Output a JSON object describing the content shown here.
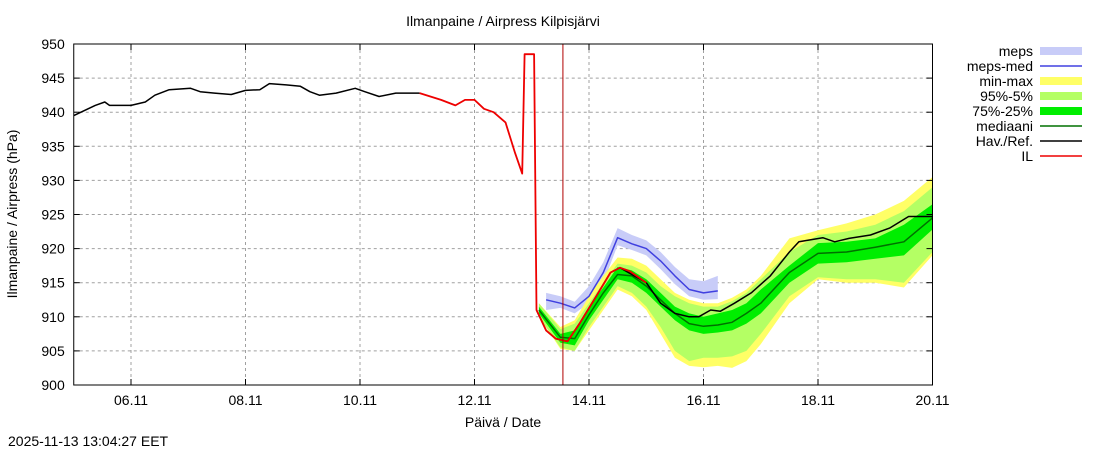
{
  "chart_data": {
    "type": "line",
    "title": "Ilmanpaine / Airpress Kilpisjärvi",
    "xlabel": "Päivä / Date",
    "ylabel": "Ilmanpaine / Airpress (hPa)",
    "xlim": [
      "2025-11-05T00:00",
      "2025-11-20T00:00"
    ],
    "ylim": [
      900,
      950
    ],
    "yticks": [
      900,
      905,
      910,
      915,
      920,
      925,
      930,
      935,
      940,
      945,
      950
    ],
    "xticks": [
      {
        "t": "2025-11-06T00:00",
        "label": "06.11"
      },
      {
        "t": "2025-11-08T00:00",
        "label": "08.11"
      },
      {
        "t": "2025-11-10T00:00",
        "label": "10.11"
      },
      {
        "t": "2025-11-12T00:00",
        "label": "12.11"
      },
      {
        "t": "2025-11-14T00:00",
        "label": "14.11"
      },
      {
        "t": "2025-11-16T00:00",
        "label": "16.11"
      },
      {
        "t": "2025-11-18T00:00",
        "label": "18.11"
      },
      {
        "t": "2025-11-20T00:00",
        "label": "20.11"
      }
    ],
    "grid": true,
    "legend_placement": "right-outside-top",
    "now_marker": "2025-11-13T13:04",
    "colors": {
      "meps": "#c8ccf8",
      "meps_med": "#4040e0",
      "minmax": "#ffff66",
      "p95_5": "#b4ff64",
      "p75_25": "#00ee00",
      "median": "#007000",
      "obs": "#000000",
      "il": "#ee0000",
      "now": "#b00000"
    },
    "legend": [
      {
        "label": "meps",
        "key": "meps",
        "kind": "band"
      },
      {
        "label": "meps-med",
        "key": "meps_med",
        "kind": "line"
      },
      {
        "label": "min-max",
        "key": "minmax",
        "kind": "band"
      },
      {
        "label": "95%-5%",
        "key": "p95_5",
        "kind": "band"
      },
      {
        "label": "75%-25%",
        "key": "p75_25",
        "kind": "band"
      },
      {
        "label": "mediaani",
        "key": "median",
        "kind": "line"
      },
      {
        "label": "Hav./Ref.",
        "key": "obs",
        "kind": "line"
      },
      {
        "label": "IL",
        "key": "il",
        "kind": "line"
      }
    ],
    "ensemble": {
      "t": [
        "2025-11-13T03:00",
        "2025-11-13T12:00",
        "2025-11-13T18:00",
        "2025-11-14T00:00",
        "2025-11-14T06:00",
        "2025-11-14T12:00",
        "2025-11-14T18:00",
        "2025-11-15T00:00",
        "2025-11-15T06:00",
        "2025-11-15T12:00",
        "2025-11-15T18:00",
        "2025-11-16T00:00",
        "2025-11-16T06:00",
        "2025-11-16T12:00",
        "2025-11-16T18:00",
        "2025-11-17T00:00",
        "2025-11-17T12:00",
        "2025-11-18T00:00",
        "2025-11-18T12:00",
        "2025-11-19T00:00",
        "2025-11-19T12:00",
        "2025-11-20T00:00"
      ],
      "median": [
        911,
        907,
        906.8,
        910.3,
        913.5,
        916.2,
        916,
        914.5,
        912.5,
        910.5,
        909,
        908.6,
        908.8,
        909.2,
        910.5,
        912,
        916.5,
        919.3,
        919.5,
        920.2,
        921,
        924.5
      ],
      "p25": [
        910.5,
        906.2,
        905.8,
        909.5,
        912.5,
        915.5,
        915,
        913.5,
        911.5,
        909.5,
        908,
        907.5,
        907.7,
        908,
        909,
        910.5,
        915,
        917.8,
        918,
        918.5,
        919,
        922.8
      ],
      "p75": [
        911.5,
        907.5,
        908,
        911.5,
        914.3,
        917.3,
        916.8,
        915.5,
        913.5,
        911.5,
        910.5,
        910,
        910.5,
        911,
        912,
        914,
        917.5,
        920.8,
        921,
        921.5,
        923.5,
        926.5
      ],
      "p5": [
        910,
        905.5,
        905,
        908.5,
        911.5,
        914.5,
        913.5,
        911.5,
        908.5,
        905,
        903.5,
        904,
        904,
        904.2,
        905,
        907.5,
        913,
        915.8,
        915.5,
        915.5,
        915,
        919.5
      ],
      "p95": [
        912,
        908.2,
        909,
        912,
        915,
        917.8,
        917.5,
        916.5,
        914.5,
        913,
        912,
        911.5,
        911.5,
        912.3,
        913.5,
        915.5,
        919.5,
        922,
        922.5,
        923.5,
        925.5,
        929
      ],
      "min": [
        910,
        905.3,
        905,
        908,
        911,
        914,
        913,
        911,
        907.5,
        904,
        902.8,
        902.6,
        902.8,
        902.5,
        903.5,
        906,
        912,
        915.5,
        915,
        915,
        914.3,
        919
      ],
      "max": [
        912,
        908.5,
        909.5,
        913,
        916,
        918.7,
        918.5,
        917.5,
        915.5,
        913.5,
        912.5,
        912,
        912,
        912.8,
        914,
        916,
        921.5,
        922.7,
        923.7,
        925,
        927,
        930.5
      ]
    },
    "meps": {
      "t": [
        "2025-11-13T06:00",
        "2025-11-13T12:00",
        "2025-11-13T18:00",
        "2025-11-14T00:00",
        "2025-11-14T06:00",
        "2025-11-14T12:00",
        "2025-11-14T18:00",
        "2025-11-15T00:00",
        "2025-11-15T06:00",
        "2025-11-15T12:00",
        "2025-11-15T18:00",
        "2025-11-16T00:00",
        "2025-11-16T06:00"
      ],
      "median": [
        912.5,
        912,
        911.3,
        913,
        916.5,
        921.6,
        920.7,
        920,
        918.2,
        916,
        914,
        913.5,
        913.8
      ],
      "low": [
        911,
        911.3,
        910.5,
        912,
        915,
        920.5,
        919.8,
        919,
        917,
        914.8,
        913,
        912.5,
        912.6
      ],
      "high": [
        913.5,
        913,
        912.2,
        914.5,
        918,
        923,
        922,
        921.2,
        919.5,
        917.3,
        915.5,
        915.2,
        916
      ]
    },
    "observed": [
      [
        [
          "2025-11-05T00:00",
          939.5
        ],
        [
          "2025-11-05T09:00",
          941
        ],
        [
          "2025-11-05T13:00",
          941.5
        ],
        [
          "2025-11-05T15:00",
          941
        ],
        [
          "2025-11-06T00:00",
          941
        ],
        [
          "2025-11-06T06:00",
          941.5
        ],
        [
          "2025-11-06T10:00",
          942.5
        ],
        [
          "2025-11-06T16:00",
          943.3
        ],
        [
          "2025-11-07T01:00",
          943.5
        ],
        [
          "2025-11-07T05:00",
          943
        ],
        [
          "2025-11-07T11:00",
          942.8
        ],
        [
          "2025-11-07T18:00",
          942.6
        ],
        [
          "2025-11-08T00:00",
          943.2
        ],
        [
          "2025-11-08T06:00",
          943.3
        ],
        [
          "2025-11-08T10:00",
          944.2
        ],
        [
          "2025-11-08T17:00",
          944
        ],
        [
          "2025-11-08T23:00",
          943.8
        ],
        [
          "2025-11-09T03:00",
          943
        ],
        [
          "2025-11-09T07:00",
          942.5
        ],
        [
          "2025-11-09T14:00",
          942.8
        ],
        [
          "2025-11-09T22:00",
          943.5
        ],
        [
          "2025-11-10T02:00",
          943
        ],
        [
          "2025-11-10T08:00",
          942.3
        ],
        [
          "2025-11-10T15:00",
          942.8
        ],
        [
          "2025-11-11T01:00",
          942.8
        ]
      ],
      [
        [
          "2025-11-13T02:00",
          911
        ],
        [
          "2025-11-13T06:00",
          908
        ],
        [
          "2025-11-13T10:00",
          906.8
        ],
        [
          "2025-11-13T15:00",
          906.4
        ],
        [
          "2025-11-13T20:00",
          909
        ],
        [
          "2025-11-14T03:00",
          913
        ],
        [
          "2025-11-14T09:00",
          916.5
        ],
        [
          "2025-11-14T13:00",
          917.2
        ],
        [
          "2025-11-15T00:00",
          915
        ],
        [
          "2025-11-15T06:00",
          912
        ],
        [
          "2025-11-15T12:00",
          910.5
        ],
        [
          "2025-11-15T18:00",
          910
        ],
        [
          "2025-11-15T22:00",
          910
        ],
        [
          "2025-11-16T03:00",
          911
        ],
        [
          "2025-11-16T07:00",
          910.8
        ],
        [
          "2025-11-16T13:00",
          912
        ],
        [
          "2025-11-16T20:00",
          913.5
        ],
        [
          "2025-11-17T04:00",
          916
        ],
        [
          "2025-11-17T12:00",
          919.5
        ],
        [
          "2025-11-17T16:00",
          921
        ],
        [
          "2025-11-18T02:00",
          921.6
        ],
        [
          "2025-11-18T07:00",
          921
        ],
        [
          "2025-11-18T13:00",
          921.5
        ],
        [
          "2025-11-18T22:00",
          922
        ],
        [
          "2025-11-19T06:00",
          923
        ],
        [
          "2025-11-19T14:00",
          924.7
        ],
        [
          "2025-11-20T00:00",
          924.7
        ]
      ]
    ],
    "il": [
      [
        "2025-11-11T01:00",
        942.8
      ],
      [
        "2025-11-11T10:00",
        941.8
      ],
      [
        "2025-11-11T16:00",
        941
      ],
      [
        "2025-11-11T20:00",
        941.8
      ],
      [
        "2025-11-12T00:00",
        941.8
      ],
      [
        "2025-11-12T04:00",
        940.5
      ],
      [
        "2025-11-12T08:00",
        940
      ],
      [
        "2025-11-12T13:00",
        938.5
      ],
      [
        "2025-11-12T17:00",
        934
      ],
      [
        "2025-11-12T20:00",
        931
      ],
      [
        "2025-11-12T21:00",
        948.5
      ],
      [
        "2025-11-13T01:00",
        948.5
      ],
      [
        "2025-11-13T02:00",
        911
      ],
      [
        "2025-11-13T06:00",
        908
      ],
      [
        "2025-11-13T10:00",
        906.8
      ],
      [
        "2025-11-13T15:00",
        906.4
      ],
      [
        "2025-11-13T20:00",
        909
      ],
      [
        "2025-11-14T03:00",
        913
      ],
      [
        "2025-11-14T09:00",
        916.5
      ],
      [
        "2025-11-14T13:00",
        917.2
      ],
      [
        "2025-11-14T17:00",
        916.7
      ],
      [
        "2025-11-15T00:00",
        915
      ]
    ]
  },
  "footer": {
    "timestamp": "2025-11-13 13:04:27 EET"
  }
}
